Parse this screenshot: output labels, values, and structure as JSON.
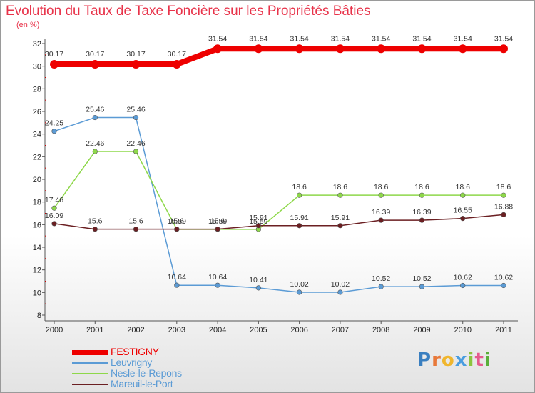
{
  "title": "Evolution du Taux de Taxe Foncière sur les Propriétés Bâties",
  "unit": "(en %)",
  "logo": "Proxiti",
  "colors": {
    "title": "#e8334a",
    "axis": "#555555",
    "grid_dash": "#cc0000"
  },
  "chart_data": {
    "type": "line",
    "title": "Evolution du Taux de Taxe Foncière sur les Propriétés Bâties",
    "ylabel": "(en %)",
    "xlabel": "",
    "x": [
      "2000",
      "2001",
      "2002",
      "2003",
      "2004",
      "2005",
      "2006",
      "2007",
      "2008",
      "2009",
      "2010",
      "2011"
    ],
    "ylim": [
      8,
      32
    ],
    "yticks": [
      "8",
      "10",
      "12",
      "14",
      "16",
      "18",
      "20",
      "22",
      "24",
      "26",
      "28",
      "30",
      "32"
    ],
    "legend_position": "bottom-left",
    "series": [
      {
        "name": "FESTIGNY",
        "color": "#ee0000",
        "values": [
          30.17,
          30.17,
          30.17,
          30.17,
          31.54,
          31.54,
          31.54,
          31.54,
          31.54,
          31.54,
          31.54,
          31.54
        ],
        "labels": [
          "30.17",
          "30.17",
          "30.17",
          "30.17",
          "31.54",
          "31.54",
          "31.54",
          "31.54",
          "31.54",
          "31.54",
          "31.54",
          "31.54"
        ]
      },
      {
        "name": "Leuvrigny",
        "color": "#5b9bd5",
        "values": [
          24.25,
          25.46,
          25.46,
          10.64,
          10.64,
          10.41,
          10.02,
          10.02,
          10.52,
          10.52,
          10.62,
          10.62
        ],
        "labels": [
          "24.25",
          "25.46",
          "25.46",
          "10.64",
          "10.64",
          "10.41",
          "10.02",
          "10.02",
          "10.52",
          "10.52",
          "10.62",
          "10.62"
        ]
      },
      {
        "name": "Nesle-le-Repons",
        "color": "#8ed84a",
        "values": [
          17.46,
          22.46,
          22.46,
          15.59,
          15.59,
          15.59,
          18.6,
          18.6,
          18.6,
          18.6,
          18.6,
          18.6
        ],
        "labels": [
          "17.46",
          "22.46",
          "22.46",
          "15.59",
          "15.59",
          "15.59",
          "18.6",
          "18.6",
          "18.6",
          "18.6",
          "18.6",
          "18.6"
        ]
      },
      {
        "name": "Mareuil-le-Port",
        "color": "#6b1f22",
        "values": [
          16.09,
          15.6,
          15.6,
          15.6,
          15.6,
          15.91,
          15.91,
          15.91,
          16.39,
          16.39,
          16.55,
          16.88
        ],
        "labels": [
          "16.09",
          "15.6",
          "15.6",
          "15.6",
          "15.6",
          "15.91",
          "15.91",
          "15.91",
          "16.39",
          "16.39",
          "16.55",
          "16.88"
        ]
      }
    ]
  }
}
